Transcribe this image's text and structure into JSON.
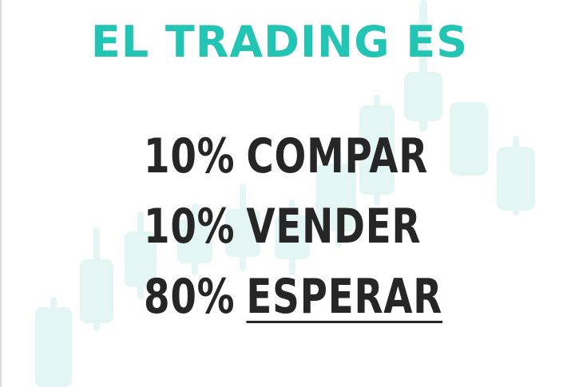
{
  "title": "EL TRADING ES",
  "lines": [
    {
      "percent": "10%",
      "word": "COMPAR",
      "underlined": false
    },
    {
      "percent": "10%",
      "word": "VENDER",
      "underlined": false
    },
    {
      "percent": "80%",
      "word": "ESPERAR",
      "underlined": true
    }
  ],
  "colors": {
    "title": "#22c4b3",
    "text": "#262626",
    "candles": "#dff5f2",
    "background": "#ffffff"
  }
}
